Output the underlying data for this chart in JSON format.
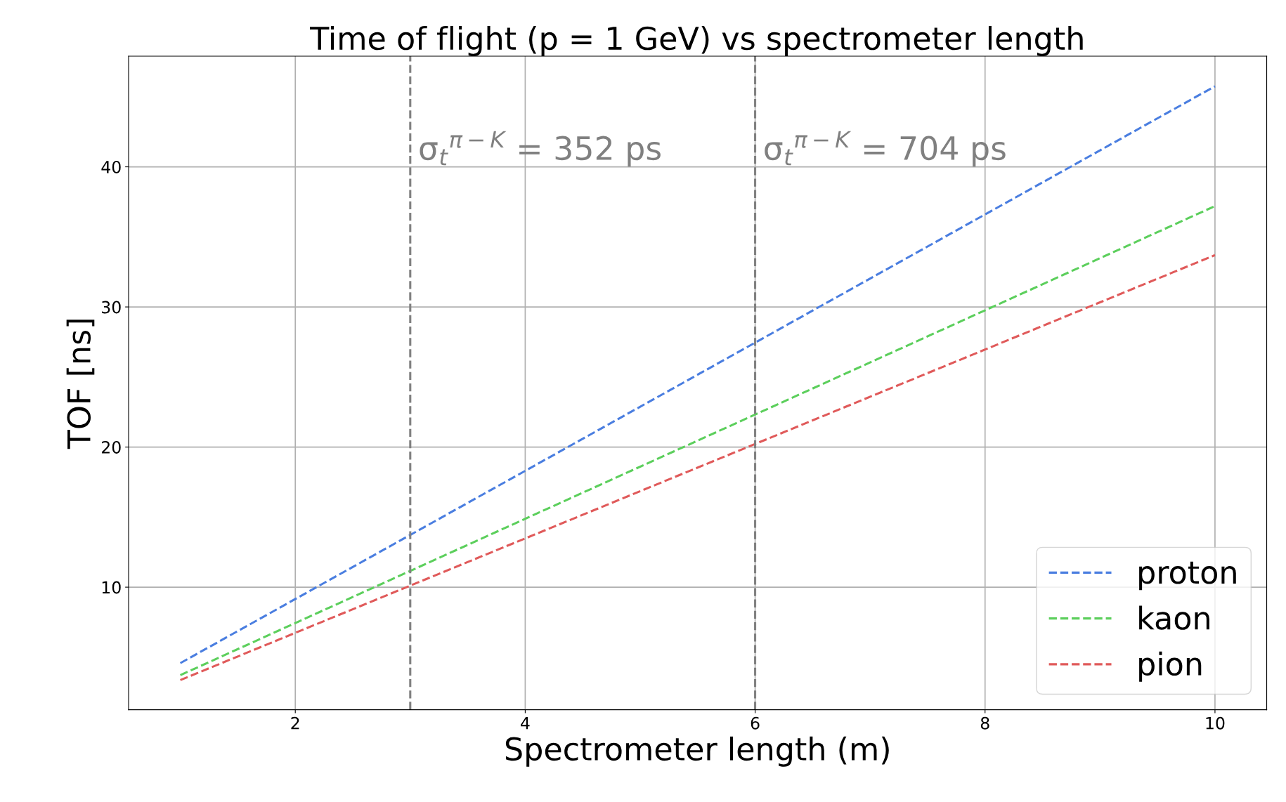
{
  "chart_data": {
    "type": "line",
    "title": "Time of flight (p = 1 GeV) vs spectrometer length",
    "xlabel": "Spectrometer length (m)",
    "ylabel": "TOF [ns]",
    "x": [
      1,
      10
    ],
    "series": [
      {
        "name": "proton",
        "color": "#4a7ee0",
        "values": [
          4.58,
          45.75
        ]
      },
      {
        "name": "kaon",
        "color": "#5ccf5c",
        "values": [
          3.72,
          37.2
        ]
      },
      {
        "name": "pion",
        "color": "#e05a5a",
        "values": [
          3.37,
          33.7
        ]
      }
    ],
    "line_style": "dashed",
    "marker": "none",
    "xlim": [
      0.55,
      10.45
    ],
    "ylim": [
      1.25,
      47.9
    ],
    "xticks": [
      2,
      4,
      6,
      8,
      10
    ],
    "yticks": [
      10,
      20,
      30,
      40
    ],
    "ref_lines": [
      {
        "axis": "x",
        "value": 3,
        "color": "#808080",
        "line_style": "dashed"
      },
      {
        "axis": "x",
        "value": 6,
        "color": "#808080",
        "line_style": "dashed"
      }
    ],
    "annotations": [
      {
        "text": "σ$_{t}$$^{π−K}$ = 352 ps",
        "x": 3,
        "y": 40
      },
      {
        "text": "σ$_{t}$$^{π−K}$ = 704 ps",
        "x": 6,
        "y": 40
      }
    ],
    "grid": true,
    "legend": "bottom right"
  }
}
